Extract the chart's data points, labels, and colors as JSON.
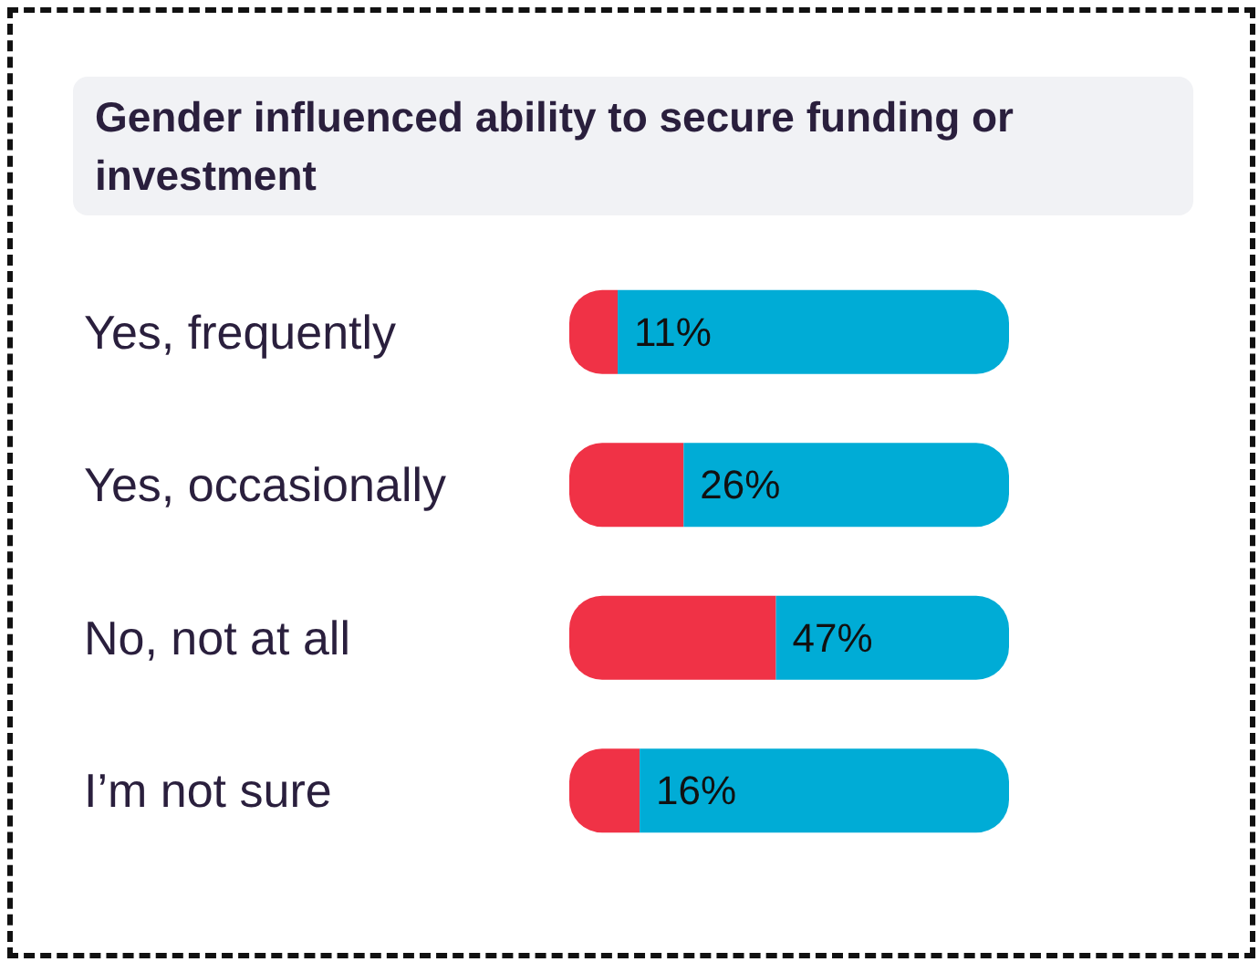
{
  "chart_data": {
    "type": "bar",
    "orientation": "horizontal",
    "stacked": true,
    "title": "Gender influenced ability to secure funding or investment",
    "categories": [
      "Yes, frequently",
      "Yes, occasionally",
      "No, not at all",
      "I’m not sure"
    ],
    "series": [
      {
        "color": "#f03246",
        "values": [
          11,
          26,
          47,
          16
        ],
        "value_labels": [
          "11%",
          "26%",
          "47%",
          "16%"
        ]
      },
      {
        "color": "#00acd6",
        "values": [
          89,
          74,
          53,
          84
        ]
      }
    ],
    "xlim": [
      0,
      100
    ],
    "tick_labels": "y"
  }
}
